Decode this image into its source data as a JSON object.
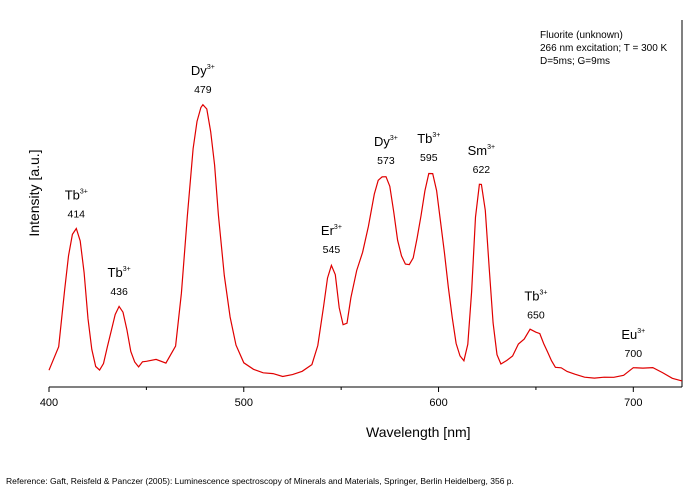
{
  "chart_data": {
    "type": "line",
    "xlabel": "Wavelength [nm]",
    "ylabel": "Intensity [a.u.]",
    "xlim": [
      400,
      725
    ],
    "ylim": [
      0,
      1
    ],
    "xticks": [
      400,
      500,
      600,
      700
    ],
    "grid": false,
    "legend_placement": "none",
    "line_color": "#e00000",
    "series": [
      {
        "x": [
          400,
          405,
          408,
          410,
          412,
          414,
          416,
          418,
          420,
          422,
          424,
          426,
          428,
          430,
          432,
          434,
          436,
          438,
          440,
          442,
          444,
          446,
          448,
          450,
          455,
          460,
          465,
          468,
          471,
          474,
          476,
          478,
          479,
          481,
          483,
          485,
          487,
          490,
          493,
          496,
          500,
          505,
          510,
          515,
          520,
          525,
          530,
          535,
          538,
          541,
          543,
          545,
          547,
          549,
          551,
          553,
          555,
          558,
          561,
          564,
          567,
          569,
          571,
          573,
          575,
          577,
          579,
          581,
          583,
          585,
          587,
          589,
          591,
          593,
          595,
          597,
          599,
          601,
          603,
          605,
          607,
          609,
          611,
          613,
          615,
          617,
          619,
          621,
          622,
          624,
          626,
          628,
          630,
          632,
          635,
          638,
          641,
          644,
          647,
          650,
          652,
          654,
          656,
          658,
          660,
          663,
          666,
          670,
          675,
          680,
          685,
          690,
          695,
          700,
          705,
          710,
          715,
          720,
          725
        ],
        "y": [
          0.03,
          0.12,
          0.3,
          0.42,
          0.49,
          0.51,
          0.47,
          0.36,
          0.21,
          0.1,
          0.05,
          0.03,
          0.06,
          0.11,
          0.17,
          0.22,
          0.25,
          0.23,
          0.17,
          0.1,
          0.06,
          0.05,
          0.06,
          0.07,
          0.07,
          0.06,
          0.12,
          0.3,
          0.55,
          0.78,
          0.88,
          0.92,
          0.93,
          0.91,
          0.84,
          0.72,
          0.56,
          0.36,
          0.21,
          0.12,
          0.06,
          0.04,
          0.03,
          0.02,
          0.02,
          0.02,
          0.03,
          0.06,
          0.12,
          0.25,
          0.35,
          0.39,
          0.36,
          0.25,
          0.19,
          0.2,
          0.28,
          0.37,
          0.44,
          0.52,
          0.63,
          0.68,
          0.69,
          0.69,
          0.66,
          0.57,
          0.48,
          0.42,
          0.4,
          0.39,
          0.42,
          0.48,
          0.56,
          0.64,
          0.7,
          0.7,
          0.64,
          0.54,
          0.43,
          0.32,
          0.21,
          0.13,
          0.08,
          0.07,
          0.12,
          0.3,
          0.55,
          0.66,
          0.66,
          0.58,
          0.38,
          0.2,
          0.09,
          0.06,
          0.07,
          0.09,
          0.12,
          0.14,
          0.17,
          0.17,
          0.16,
          0.13,
          0.1,
          0.07,
          0.05,
          0.04,
          0.03,
          0.02,
          0.015,
          0.01,
          0.01,
          0.015,
          0.02,
          0.04,
          0.05,
          0.04,
          0.03,
          0.01,
          0.0
        ]
      }
    ],
    "peaks": [
      {
        "ion": "Tb",
        "sup": "3+",
        "wavelength": "414"
      },
      {
        "ion": "Tb",
        "sup": "3+",
        "wavelength": "436"
      },
      {
        "ion": "Dy",
        "sup": "3+",
        "wavelength": "479"
      },
      {
        "ion": "Er",
        "sup": "3+",
        "wavelength": "545"
      },
      {
        "ion": "Dy",
        "sup": "3+",
        "wavelength": "573"
      },
      {
        "ion": "Tb",
        "sup": "3+",
        "wavelength": "595"
      },
      {
        "ion": "Sm",
        "sup": "3+",
        "wavelength": "622"
      },
      {
        "ion": "Tb",
        "sup": "3+",
        "wavelength": "650"
      },
      {
        "ion": "Eu",
        "sup": "3+",
        "wavelength": "700"
      }
    ]
  },
  "annotation": {
    "line1": "Fluorite (unknown)",
    "line2": "266 nm excitation; T = 300 K",
    "line3": "D=5ms; G=9ms"
  },
  "reference": "Reference: Gaft, Reisfeld & Panczer (2005): Luminescence spectroscopy of Minerals and Materials, Springer, Berlin Heidelberg, 356 p."
}
